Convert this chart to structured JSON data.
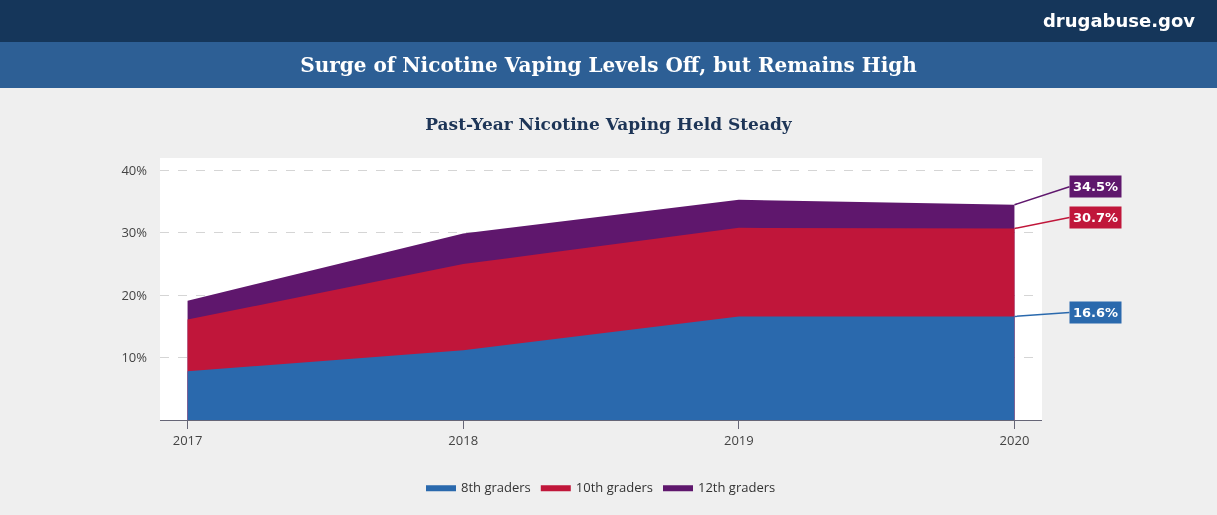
{
  "chart_data": {
    "type": "area",
    "title": "Surge of Nicotine Vaping Levels Off, but Remains High",
    "subtitle": "Past-Year Nicotine Vaping Held Steady",
    "annotations": [
      "drugabuse.gov"
    ],
    "x": [
      2017,
      2018,
      2019,
      2020
    ],
    "series": [
      {
        "name": "8th graders",
        "color": "#2a69ad",
        "values": [
          7.8,
          11.2,
          16.6,
          16.6
        ],
        "value_labels": [
          null,
          null,
          null,
          "16.6%"
        ]
      },
      {
        "name": "10th graders",
        "color": "#c0163a",
        "values": [
          16.1,
          25,
          30.8,
          30.7
        ],
        "value_labels": [
          null,
          null,
          null,
          "30.7%"
        ]
      },
      {
        "name": "12th graders",
        "color": "#5f176d",
        "values": [
          19.1,
          29.9,
          35.3,
          34.5
        ],
        "value_labels": [
          null,
          null,
          null,
          "34.5%"
        ]
      }
    ],
    "xlim": [
      2016.9,
      2020.1
    ],
    "xticks": [
      2017,
      2018,
      2019,
      2020
    ],
    "ylim": [
      0,
      42
    ],
    "yticks": [
      {
        "value": 10,
        "label": "10%"
      },
      {
        "value": 20,
        "label": "20%"
      },
      {
        "value": 30,
        "label": "30%"
      },
      {
        "value": 40,
        "label": "40%"
      }
    ],
    "grid": "y",
    "legend": "bottom"
  }
}
